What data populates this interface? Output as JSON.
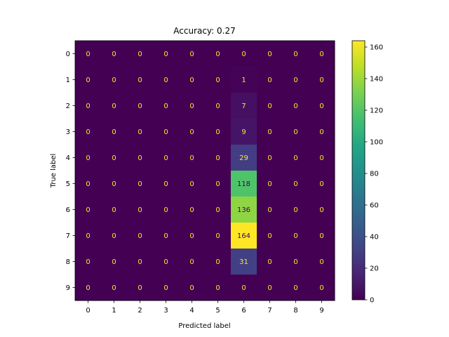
{
  "chart_data": {
    "type": "heatmap",
    "title": "Accuracy: 0.27",
    "xlabel": "Predicted label",
    "ylabel": "True label",
    "x_categories": [
      "0",
      "1",
      "2",
      "3",
      "4",
      "5",
      "6",
      "7",
      "8",
      "9"
    ],
    "y_categories": [
      "0",
      "1",
      "2",
      "3",
      "4",
      "5",
      "6",
      "7",
      "8",
      "9"
    ],
    "matrix": [
      [
        0,
        0,
        0,
        0,
        0,
        0,
        0,
        0,
        0,
        0
      ],
      [
        0,
        0,
        0,
        0,
        0,
        0,
        1,
        0,
        0,
        0
      ],
      [
        0,
        0,
        0,
        0,
        0,
        0,
        7,
        0,
        0,
        0
      ],
      [
        0,
        0,
        0,
        0,
        0,
        0,
        9,
        0,
        0,
        0
      ],
      [
        0,
        0,
        0,
        0,
        0,
        0,
        29,
        0,
        0,
        0
      ],
      [
        0,
        0,
        0,
        0,
        0,
        0,
        118,
        0,
        0,
        0
      ],
      [
        0,
        0,
        0,
        0,
        0,
        0,
        136,
        0,
        0,
        0
      ],
      [
        0,
        0,
        0,
        0,
        0,
        0,
        164,
        0,
        0,
        0
      ],
      [
        0,
        0,
        0,
        0,
        0,
        0,
        31,
        0,
        0,
        0
      ],
      [
        0,
        0,
        0,
        0,
        0,
        0,
        0,
        0,
        0,
        0
      ]
    ],
    "colormap": "viridis",
    "value_range": [
      0,
      164
    ],
    "colorbar_ticks": [
      0,
      20,
      40,
      60,
      80,
      100,
      120,
      140,
      160
    ],
    "grid": false,
    "legend": "colorbar-right"
  }
}
